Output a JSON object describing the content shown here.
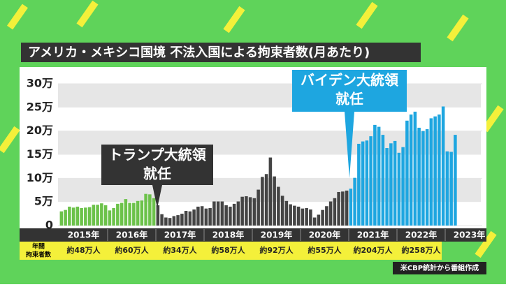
{
  "chart_data": {
    "type": "bar",
    "title": "アメリカ・メキシコ国境 不法入国による拘束者数(月あたり)",
    "ylim": [
      0,
      30
    ],
    "yticks": [
      0,
      {
        "value": 5,
        "label": "5万"
      },
      {
        "value": 10,
        "label": "10万"
      },
      {
        "value": 15,
        "label": "15万"
      },
      {
        "value": 20,
        "label": "20万"
      },
      {
        "value": 25,
        "label": "25万"
      },
      {
        "value": 30,
        "label": "30万"
      }
    ],
    "years": [
      "2015年",
      "2016年",
      "2017年",
      "2018年",
      "2019年",
      "2020年",
      "2021年",
      "2022年",
      "2023年"
    ],
    "annual_label": [
      "年間",
      "拘束者数"
    ],
    "annual_totals": [
      "約48万人",
      "約60万人",
      "約34万人",
      "約58万人",
      "約92万人",
      "約55万人",
      "約204万人",
      "約258万人"
    ],
    "series": [
      {
        "color": "#6cc24a",
        "values": [
          3.0,
          3.3,
          4.0,
          3.8,
          4.0,
          3.7,
          3.8,
          3.9,
          4.4,
          4.4,
          4.7,
          4.3,
          3.2,
          3.7,
          4.6,
          4.8,
          5.6,
          4.8,
          4.8,
          5.2,
          5.3,
          6.7,
          6.6,
          5.8
        ]
      },
      {
        "color": "#444444",
        "values": [
          4.3,
          2.4,
          1.7,
          1.6,
          2.0,
          2.2,
          2.5,
          3.1,
          3.0,
          3.4,
          4.0,
          4.1,
          3.6,
          3.7,
          5.1,
          5.1,
          5.1,
          4.3,
          4.0,
          4.6,
          5.1,
          6.1,
          6.2,
          6.0,
          5.8,
          7.6,
          10.3,
          10.9,
          14.4,
          10.4,
          8.2,
          6.3,
          5.2,
          4.5,
          4.2,
          4.0,
          3.6,
          3.7,
          3.4,
          1.7,
          2.3,
          3.3,
          4.1,
          5.1,
          5.8,
          7.1,
          7.2,
          7.4
        ]
      },
      {
        "color": "#1ea6e0",
        "values": [
          7.8,
          10.1,
          17.3,
          17.8,
          18.0,
          18.9,
          21.3,
          20.9,
          19.2,
          16.4,
          17.4,
          17.9,
          15.4,
          16.6,
          22.2,
          23.5,
          24.1,
          20.7,
          20.0,
          20.4,
          22.7,
          23.1,
          23.5,
          25.2,
          15.7,
          15.6,
          19.2
        ]
      }
    ],
    "annotations": [
      {
        "lines": [
          "トランプ大統領",
          "就任"
        ]
      },
      {
        "lines": [
          "バイデン大統領",
          "就任"
        ]
      }
    ],
    "source": "米CBP統計から番組作成"
  }
}
